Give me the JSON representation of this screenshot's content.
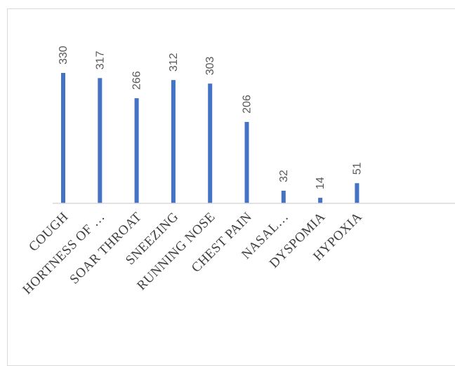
{
  "chart_data": {
    "type": "bar",
    "categories": [
      "COUGH",
      "HORTNESS OF …",
      "SOAR THROAT",
      "SNEEZING",
      "RUNNING NOSE",
      "CHEST PAIN",
      "NASAL…",
      "DYSPOMIA",
      "HYPOXIA"
    ],
    "series": [
      {
        "values": [
          330,
          317,
          266,
          312,
          303,
          206,
          32,
          14,
          51
        ],
        "color": "#4472c4"
      }
    ],
    "data_labels": [
      "330",
      "317",
      "266",
      "312",
      "303",
      "206",
      "32",
      "14",
      "51"
    ],
    "title": "",
    "xlabel": "",
    "ylabel": "",
    "ylim": [
      0,
      350
    ],
    "grid": false,
    "legend": "none",
    "axis_color": "#d9d9d9",
    "label_color": "#595959"
  }
}
